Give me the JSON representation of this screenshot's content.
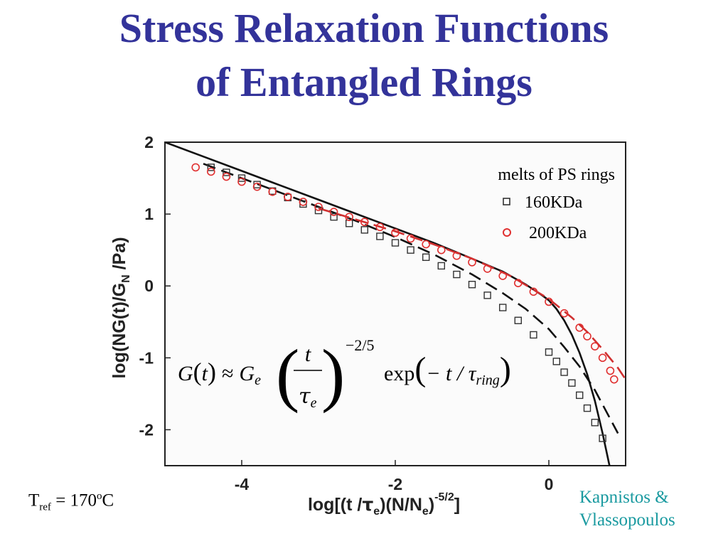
{
  "slide": {
    "title_line1": "Stress Relaxation Functions",
    "title_line2": "of Entangled Rings",
    "tref_base": "T",
    "tref_sub": "ref",
    "tref_eq": " = 170",
    "tref_sup": "o",
    "tref_unit": "C",
    "credit_line1": "Kapnistos &",
    "credit_line2": "Vlassopoulos"
  },
  "equation": {
    "lhs": "G",
    "lhs_arg": "t",
    "approx": "≈",
    "ge": "G",
    "ge_sub": "e",
    "frac_num": "t",
    "frac_den": "τ",
    "frac_den_sub": "e",
    "power": "−2/5",
    "exp": "exp",
    "exp_arg": "− t / τ",
    "exp_arg_sub": "ring"
  },
  "chart_data": {
    "type": "scatter",
    "xlabel": "log[(t /τe)(N/Ne)-5/2]",
    "ylabel": "log(NG(t)/GN /Pa)",
    "xlim": [
      -5.0,
      1.0
    ],
    "ylim": [
      -2.5,
      2.0
    ],
    "x_ticks": [
      -4,
      -2,
      0
    ],
    "x_tick_labels": [
      "-4",
      "-2",
      "0"
    ],
    "y_ticks": [
      2,
      1,
      0,
      -1,
      -2
    ],
    "y_tick_labels": [
      "2",
      "1",
      "0",
      "-1",
      "-2"
    ],
    "legend_title": "melts of PS rings",
    "legend_placement": "top-right",
    "series": [
      {
        "name": "160KDa",
        "marker": "square",
        "color": "#333333",
        "x": [
          -4.4,
          -4.2,
          -4.0,
          -3.8,
          -3.6,
          -3.4,
          -3.2,
          -3.0,
          -2.8,
          -2.6,
          -2.4,
          -2.2,
          -2.0,
          -1.8,
          -1.6,
          -1.4,
          -1.2,
          -1.0,
          -0.8,
          -0.6,
          -0.4,
          -0.2,
          0.0,
          0.1,
          0.2,
          0.3,
          0.4,
          0.5,
          0.6,
          0.7
        ],
        "y": [
          1.65,
          1.58,
          1.5,
          1.41,
          1.32,
          1.23,
          1.14,
          1.05,
          0.96,
          0.87,
          0.78,
          0.69,
          0.6,
          0.5,
          0.4,
          0.28,
          0.16,
          0.02,
          -0.13,
          -0.3,
          -0.48,
          -0.68,
          -0.92,
          -1.05,
          -1.2,
          -1.35,
          -1.52,
          -1.7,
          -1.9,
          -2.12
        ]
      },
      {
        "name": "200KDa",
        "marker": "circle",
        "color": "#e03030",
        "x": [
          -4.6,
          -4.4,
          -4.2,
          -4.0,
          -3.8,
          -3.6,
          -3.4,
          -3.2,
          -3.0,
          -2.8,
          -2.6,
          -2.4,
          -2.2,
          -2.0,
          -1.8,
          -1.6,
          -1.4,
          -1.2,
          -1.0,
          -0.8,
          -0.6,
          -0.4,
          -0.2,
          0.0,
          0.2,
          0.4,
          0.5,
          0.6,
          0.7,
          0.8,
          0.85
        ],
        "y": [
          1.65,
          1.59,
          1.52,
          1.45,
          1.38,
          1.31,
          1.24,
          1.17,
          1.1,
          1.03,
          0.96,
          0.89,
          0.82,
          0.74,
          0.66,
          0.58,
          0.5,
          0.42,
          0.33,
          0.24,
          0.14,
          0.04,
          -0.08,
          -0.22,
          -0.38,
          -0.58,
          -0.7,
          -0.84,
          -1.0,
          -1.18,
          -1.3
        ]
      }
    ],
    "curves": [
      {
        "style": "solid",
        "color": "#111111",
        "x": [
          -5.0,
          -4.5,
          -4.0,
          -3.5,
          -3.0,
          -2.5,
          -2.0,
          -1.5,
          -1.0,
          -0.6,
          -0.3,
          -0.1,
          0.0,
          0.1,
          0.2,
          0.3,
          0.4,
          0.5,
          0.6,
          0.7,
          0.8
        ],
        "y": [
          2.0,
          1.8,
          1.6,
          1.4,
          1.2,
          1.0,
          0.8,
          0.6,
          0.38,
          0.2,
          0.02,
          -0.12,
          -0.2,
          -0.32,
          -0.48,
          -0.68,
          -0.93,
          -1.23,
          -1.6,
          -2.05,
          -2.55
        ]
      },
      {
        "style": "dashed",
        "color": "#111111",
        "x": [
          -4.5,
          -4.0,
          -3.5,
          -3.0,
          -2.5,
          -2.0,
          -1.5,
          -1.0,
          -0.6,
          -0.3,
          0.0,
          0.2,
          0.4,
          0.6,
          0.8,
          0.9
        ],
        "y": [
          1.7,
          1.5,
          1.3,
          1.1,
          0.9,
          0.68,
          0.44,
          0.16,
          -0.1,
          -0.32,
          -0.6,
          -0.85,
          -1.12,
          -1.45,
          -1.85,
          -2.05
        ]
      },
      {
        "style": "dashed",
        "color": "#d03030",
        "x": [
          -3.0,
          -2.5,
          -2.0,
          -1.5,
          -1.0,
          -0.5,
          0.0,
          0.3,
          0.5,
          0.7,
          0.9,
          1.0
        ],
        "y": [
          1.08,
          0.92,
          0.76,
          0.58,
          0.38,
          0.14,
          -0.18,
          -0.44,
          -0.64,
          -0.88,
          -1.14,
          -1.3
        ]
      }
    ]
  }
}
